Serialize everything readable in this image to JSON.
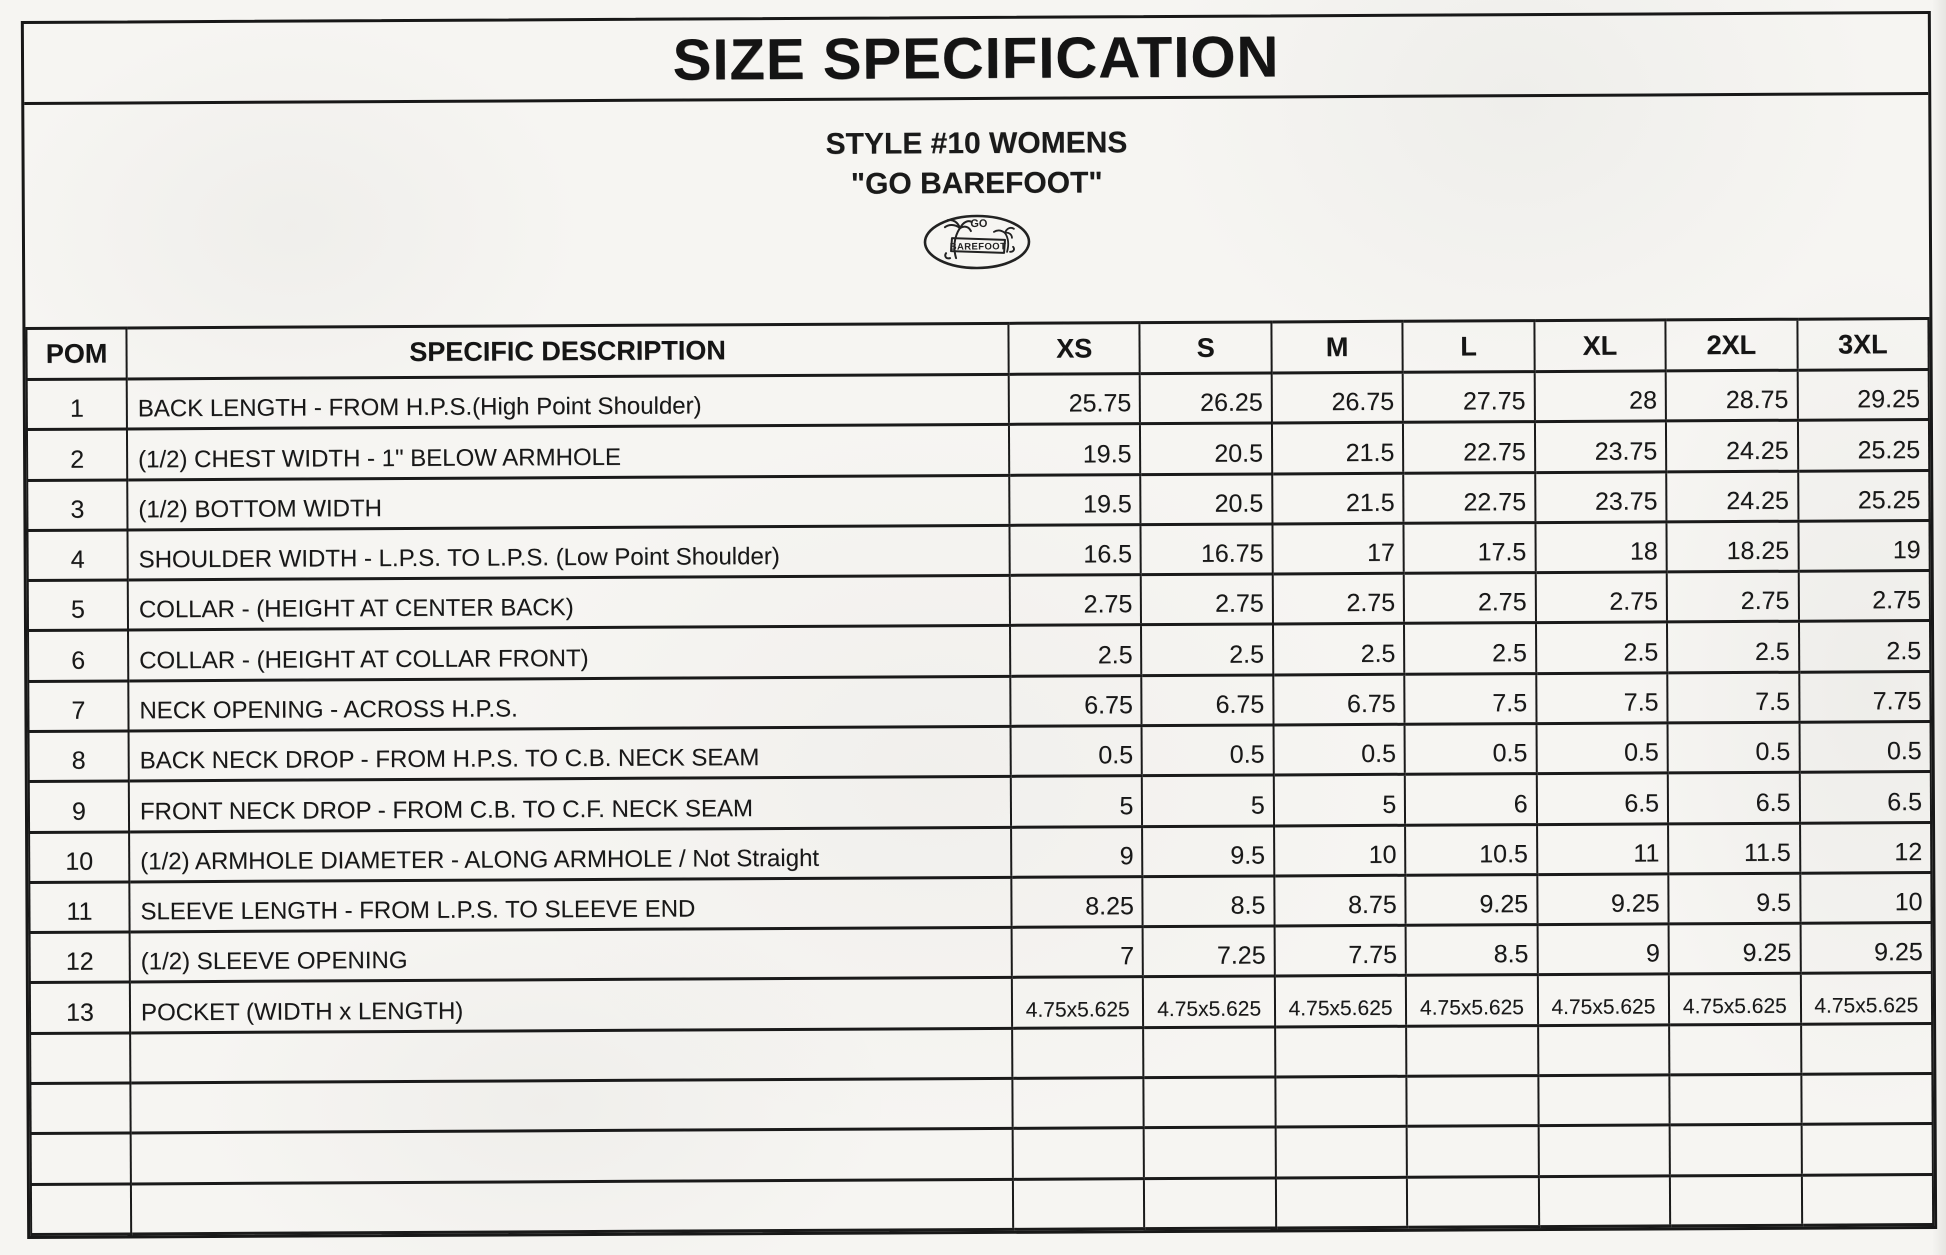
{
  "document": {
    "title": "SIZE SPECIFICATION",
    "style_line_1": "STYLE #10 WOMENS",
    "style_line_2": "\"GO BAREFOOT\"",
    "logo": {
      "text_top": "GO",
      "text_main": "BAREFOOT"
    },
    "colors": {
      "paper": "#f6f5f2",
      "ink": "#181818"
    }
  },
  "table": {
    "column_headers": {
      "pom": "POM",
      "description": "SPECIFIC DESCRIPTION",
      "sizes": [
        "XS",
        "S",
        "M",
        "L",
        "XL",
        "2XL",
        "3XL"
      ]
    },
    "rows": [
      {
        "pom": "1",
        "description": "BACK LENGTH - FROM H.P.S.(High Point Shoulder)",
        "values": [
          "25.75",
          "26.25",
          "26.75",
          "27.75",
          "28",
          "28.75",
          "29.25"
        ]
      },
      {
        "pom": "2",
        "description": "(1/2) CHEST WIDTH - 1\" BELOW ARMHOLE",
        "values": [
          "19.5",
          "20.5",
          "21.5",
          "22.75",
          "23.75",
          "24.25",
          "25.25"
        ]
      },
      {
        "pom": "3",
        "description": "(1/2) BOTTOM WIDTH",
        "values": [
          "19.5",
          "20.5",
          "21.5",
          "22.75",
          "23.75",
          "24.25",
          "25.25"
        ]
      },
      {
        "pom": "4",
        "description": "SHOULDER WIDTH - L.P.S. TO L.P.S. (Low Point Shoulder)",
        "values": [
          "16.5",
          "16.75",
          "17",
          "17.5",
          "18",
          "18.25",
          "19"
        ]
      },
      {
        "pom": "5",
        "description": "COLLAR - (HEIGHT AT CENTER BACK)",
        "values": [
          "2.75",
          "2.75",
          "2.75",
          "2.75",
          "2.75",
          "2.75",
          "2.75"
        ]
      },
      {
        "pom": "6",
        "description": "COLLAR - (HEIGHT AT COLLAR FRONT)",
        "values": [
          "2.5",
          "2.5",
          "2.5",
          "2.5",
          "2.5",
          "2.5",
          "2.5"
        ]
      },
      {
        "pom": "7",
        "description": "NECK OPENING - ACROSS H.P.S.",
        "values": [
          "6.75",
          "6.75",
          "6.75",
          "7.5",
          "7.5",
          "7.5",
          "7.75"
        ]
      },
      {
        "pom": "8",
        "description": "BACK NECK DROP - FROM H.P.S. TO C.B. NECK SEAM",
        "values": [
          "0.5",
          "0.5",
          "0.5",
          "0.5",
          "0.5",
          "0.5",
          "0.5"
        ]
      },
      {
        "pom": "9",
        "description": "FRONT NECK DROP - FROM C.B. TO C.F. NECK SEAM",
        "values": [
          "5",
          "5",
          "5",
          "6",
          "6.5",
          "6.5",
          "6.5"
        ]
      },
      {
        "pom": "10",
        "description": "(1/2) ARMHOLE DIAMETER - ALONG ARMHOLE / Not Straight",
        "values": [
          "9",
          "9.5",
          "10",
          "10.5",
          "11",
          "11.5",
          "12"
        ]
      },
      {
        "pom": "11",
        "description": "SLEEVE LENGTH - FROM L.P.S. TO SLEEVE END",
        "values": [
          "8.25",
          "8.5",
          "8.75",
          "9.25",
          "9.25",
          "9.5",
          "10"
        ]
      },
      {
        "pom": "12",
        "description": "(1/2) SLEEVE OPENING",
        "values": [
          "7",
          "7.25",
          "7.75",
          "8.5",
          "9",
          "9.25",
          "9.25"
        ]
      },
      {
        "pom": "13",
        "description": "POCKET (WIDTH x LENGTH)",
        "values": [
          "4.75x5.625",
          "4.75x5.625",
          "4.75x5.625",
          "4.75x5.625",
          "4.75x5.625",
          "4.75x5.625",
          "4.75x5.625"
        ]
      }
    ],
    "empty_row_count": 4
  }
}
